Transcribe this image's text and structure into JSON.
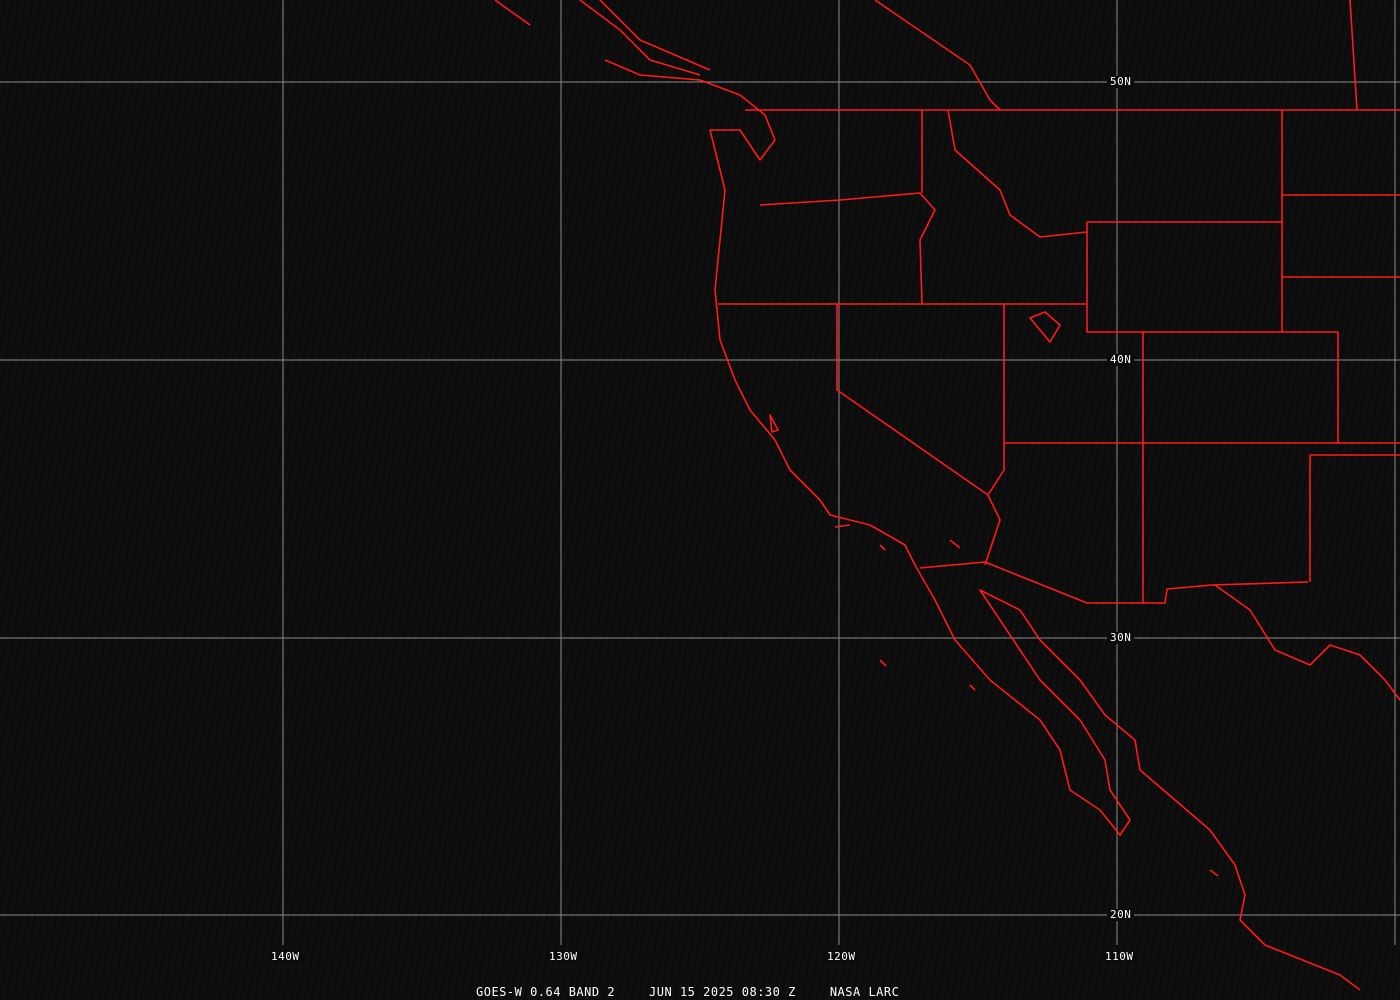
{
  "image": {
    "satellite": "GOES-W 0.64 BAND 2",
    "datetime": "JUN 15 2025 08:30 Z",
    "credit": "NASA LARC"
  },
  "grid": {
    "longitude_labels": [
      "140W",
      "130W",
      "120W",
      "110W"
    ],
    "latitude_labels": [
      "50N",
      "40N",
      "30N",
      "20N"
    ],
    "grid_color": "#8a8a8a"
  },
  "overlay": {
    "boundary_color": "#ff1a1a",
    "features": [
      "coastlines",
      "state-borders",
      "international-borders"
    ]
  }
}
